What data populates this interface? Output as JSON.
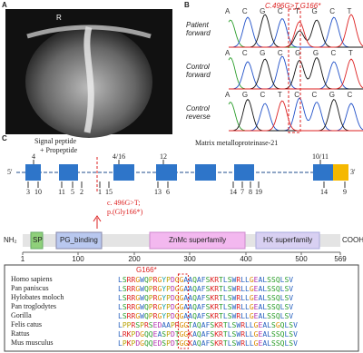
{
  "panels": {
    "a": {
      "label": "A",
      "marker": "R"
    },
    "b": {
      "label": "B",
      "mutation": "C.496G>T,G166*",
      "rows": [
        {
          "name": [
            "Patient",
            "forward"
          ],
          "seq": "ACGCTGCT"
        },
        {
          "name": [
            "Control",
            "forward"
          ],
          "seq": "ACGCGGCT"
        },
        {
          "name": [
            "Control",
            "reverse"
          ],
          "seq": "AGCTCCGC"
        }
      ]
    },
    "c": {
      "label": "C",
      "signal": [
        "Signal peptide",
        "+ Propeptide"
      ],
      "gene": "Matrix metalloproteinase-21",
      "five": "5'",
      "three": "3'",
      "top_counts": [
        "4",
        "4/16",
        "12",
        "10/11"
      ],
      "bottom_counts": [
        "3",
        "10",
        "11",
        "5",
        "2",
        "1",
        "15",
        "13",
        "6",
        "14",
        "7",
        "8",
        "19",
        "14",
        "9"
      ],
      "variant": [
        "c. 496G>T;",
        "p.(Gly166*)"
      ],
      "domains": {
        "nh2": "NH₂",
        "sp": "SP",
        "pg": "PG_binding",
        "znmc": "ZnMc superfamily",
        "hx": "HX superfamily",
        "cooh": "COOH"
      },
      "axis": [
        "1",
        "100",
        "200",
        "300",
        "400",
        "500",
        "569"
      ],
      "alignment": {
        "site": "G166*",
        "rows": [
          {
            "species": "Homo sapiens",
            "seq": "LSRRGWQPRGYPDGGAAQAFSKRTLSWRLLGEALSSQLSV"
          },
          {
            "species": "Pan paniscus",
            "seq": "LSRRGWQPRGYPDGGAAQAFSKRTLSWRLLGEALSSQLSV"
          },
          {
            "species": "Hylobates moloch",
            "seq": "LSRRGWQPRGYPDGGAAQAFSKRTLSWRLLGEALSSQLSV"
          },
          {
            "species": "Pan troglodytes",
            "seq": "LSRRGWQPRGYPDGGAAQAFSKRTLSWRLLGEALSSQLSV"
          },
          {
            "species": "Gorilla",
            "seq": "LSRRGWQPRGYPDGGAAQAFSKRTLSWRLLGEALSSQLSV"
          },
          {
            "species": "Felis catus",
            "seq": "LPPRSPRSEDAAPRGGTAQAFSKRTLSWRLLGEALSGQLSV"
          },
          {
            "species": "Rattus",
            "seq": "LRKPDGQQEASPDTGGKAQAFSKRTLSWRLLGEALSSQLSV"
          },
          {
            "species": "Mus musculus",
            "seq": "LPKPDGQQEDSPDTGGKAQAFSKRTLSWRLLGEALSSQLSV"
          }
        ]
      }
    }
  }
}
